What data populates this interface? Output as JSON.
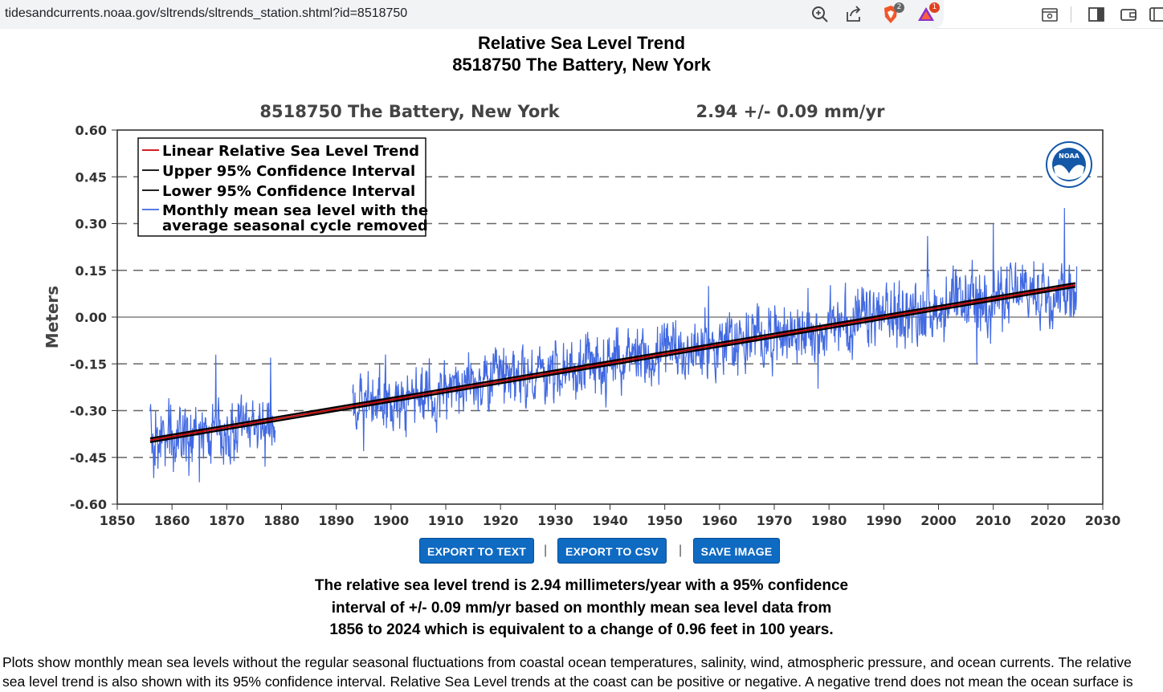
{
  "browser": {
    "url": "tidesandcurrents.noaa.gov/sltrends/sltrends_station.shtml?id=8518750",
    "brave_badge": "2",
    "rewards_badge": "1",
    "icons": [
      "zoom-icon",
      "share-icon",
      "brave-shields-icon",
      "brave-rewards-icon",
      "reader-mode-icon",
      "sidebar-icon",
      "wallet-icon",
      "extensions-icon"
    ]
  },
  "page": {
    "title_line1": "Relative Sea Level Trend",
    "title_line2": "8518750 The Battery, New York"
  },
  "chart_data": {
    "type": "line",
    "title_left": "8518750 The Battery, New York",
    "title_right": "2.94 +/-  0.09 mm/yr",
    "xlabel": "",
    "ylabel": "Meters",
    "xlim": [
      1850,
      2030
    ],
    "ylim": [
      -0.6,
      0.6
    ],
    "xticks": [
      1850,
      1860,
      1870,
      1880,
      1890,
      1900,
      1910,
      1920,
      1930,
      1940,
      1950,
      1960,
      1970,
      1980,
      1990,
      2000,
      2010,
      2020,
      2030
    ],
    "xtick_labels": [
      "1850",
      "1860",
      "1870",
      "1880",
      "1890",
      "1900",
      "1910",
      "1920",
      "1930",
      "1940",
      "1950",
      "1960",
      "1970",
      "1980",
      "1990",
      "2000",
      "2010",
      "2020",
      "2030"
    ],
    "yticks": [
      -0.6,
      -0.45,
      -0.3,
      -0.15,
      0.0,
      0.15,
      0.3,
      0.45,
      0.6
    ],
    "ytick_labels": [
      "-0.60",
      "-0.45",
      "-0.30",
      "-0.15",
      "0.00",
      "0.15",
      "0.30",
      "0.45",
      "0.60"
    ],
    "grid": "dashed horizontal",
    "legend_position": "top-left",
    "legend": [
      {
        "label": "Linear Relative Sea Level Trend",
        "color": "#cc0000"
      },
      {
        "label": "Upper 95% Confidence Interval",
        "color": "#000000"
      },
      {
        "label": "Lower 95% Confidence Interval",
        "color": "#000000"
      },
      {
        "label": "Monthly mean sea level with the",
        "label2": "average seasonal cycle removed",
        "color": "#4169e1"
      }
    ],
    "trend": {
      "x": [
        1856,
        2025
      ],
      "y": [
        -0.395,
        0.103
      ]
    },
    "upper_ci": {
      "x": [
        1856,
        2025
      ],
      "y": [
        -0.389,
        0.109
      ]
    },
    "lower_ci": {
      "x": [
        1856,
        2025
      ],
      "y": [
        -0.401,
        0.097
      ]
    },
    "monthly_series": {
      "name": "Monthly mean sea level",
      "segments": [
        {
          "start": 1856.0,
          "end": 1878.9,
          "amplitude": 0.16
        },
        {
          "start": 1893.0,
          "end": 2025.3,
          "amplitude": 0.16
        }
      ],
      "sample_points": [
        {
          "x": 1857,
          "y": -0.3
        },
        {
          "x": 1865,
          "y": -0.53
        },
        {
          "x": 1868,
          "y": -0.12
        },
        {
          "x": 1877,
          "y": -0.48
        },
        {
          "x": 1878,
          "y": -0.13
        },
        {
          "x": 1895,
          "y": -0.43
        },
        {
          "x": 1899,
          "y": -0.12
        },
        {
          "x": 1933,
          "y": -0.08
        },
        {
          "x": 1952,
          "y": -0.01
        },
        {
          "x": 1958,
          "y": 0.1
        },
        {
          "x": 1969,
          "y": 0.03
        },
        {
          "x": 1978,
          "y": -0.23
        },
        {
          "x": 1983,
          "y": 0.11
        },
        {
          "x": 1998,
          "y": 0.26
        },
        {
          "x": 2007,
          "y": -0.15
        },
        {
          "x": 2010,
          "y": 0.3
        },
        {
          "x": 2023,
          "y": 0.35
        },
        {
          "x": 2024,
          "y": 0.0
        }
      ],
      "color": "#4169e1"
    },
    "logo": "NOAA"
  },
  "buttons": {
    "export_text": "EXPORT TO TEXT",
    "export_csv": "EXPORT TO CSV",
    "save_image": "SAVE IMAGE",
    "separator": "|"
  },
  "summary": {
    "line1": "The relative sea level trend is 2.94 millimeters/year with a 95% confidence",
    "line2": "interval of +/- 0.09 mm/yr based on monthly mean sea level data from",
    "line3": "1856 to 2024 which is equivalent to a change of 0.96 feet in 100 years."
  },
  "body": {
    "line1": "Plots show monthly mean sea levels without the regular seasonal fluctuations from coastal ocean temperatures, salinity, wind, atmospheric pressure, and ocean currents. The relative",
    "line2": "sea level trend is also shown with its 95% confidence interval. Relative Sea Level trends at the coast can be positive or negative. A negative trend does not mean the ocean surface is"
  },
  "colors": {
    "button_blue": "#0f6ac2",
    "series_blue": "#4169e1",
    "trend_red": "#cc0000",
    "noaa_blue": "#1458a8"
  }
}
